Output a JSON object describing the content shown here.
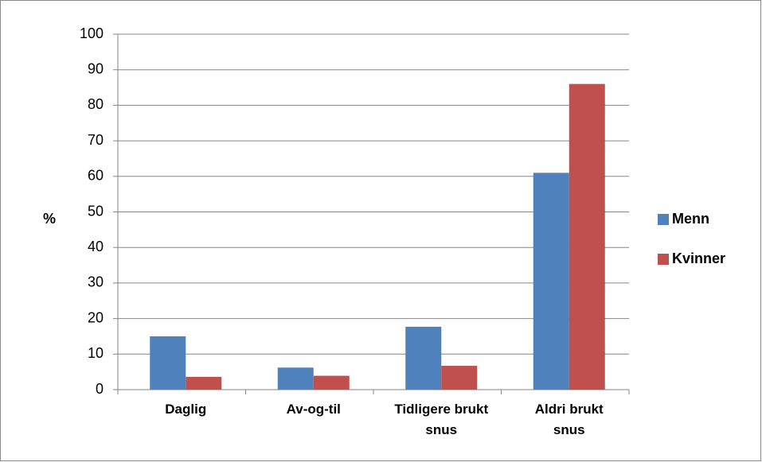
{
  "chart_data": {
    "type": "bar",
    "y_label": "%",
    "categories": [
      "Daglig",
      "Av-og-til",
      "Tidligere brukt snus",
      "Aldri brukt snus"
    ],
    "series": [
      {
        "name": "Menn",
        "color": "#4f81bd",
        "values": [
          15,
          6.2,
          17.7,
          61
        ]
      },
      {
        "name": "Kvinner",
        "color": "#c0504d",
        "values": [
          3.6,
          3.9,
          6.7,
          86
        ]
      }
    ],
    "ylim": [
      0,
      100
    ],
    "yticks": [
      0,
      10,
      20,
      30,
      40,
      50,
      60,
      70,
      80,
      90,
      100
    ],
    "grid": true,
    "legend": "right"
  }
}
